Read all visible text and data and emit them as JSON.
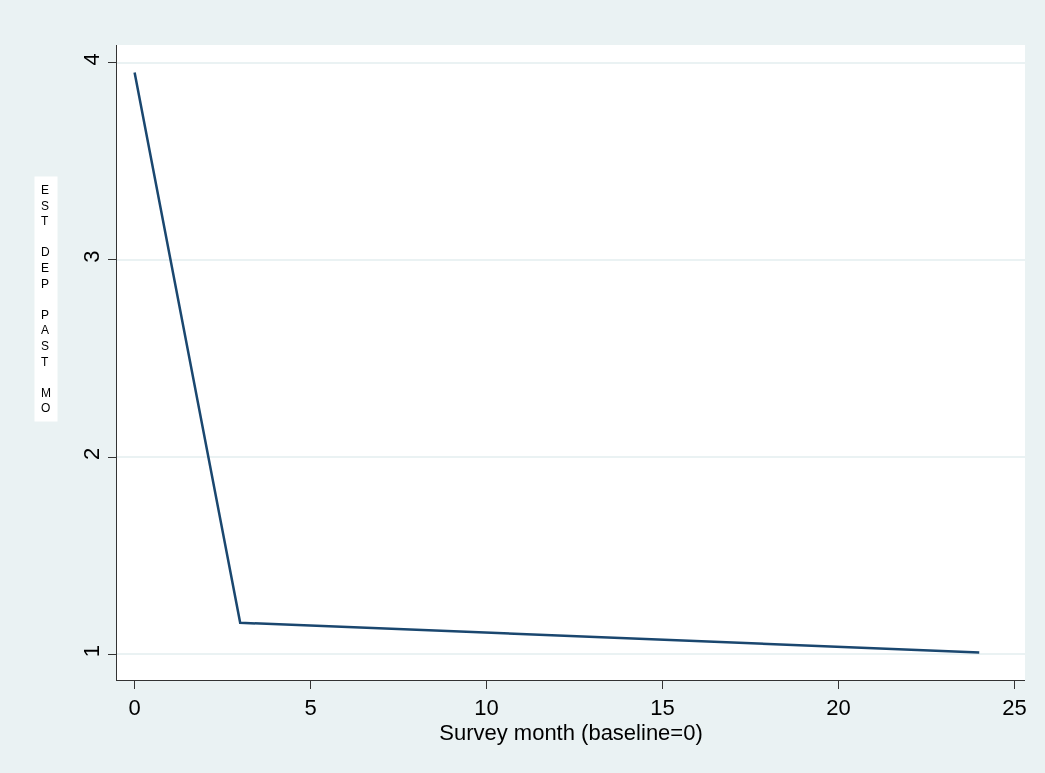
{
  "chart_data": {
    "type": "line",
    "xlabel": "Survey month (baseline=0)",
    "ylabel": "EST DEP PAST MO",
    "x": [
      0,
      3,
      24
    ],
    "series": [
      {
        "color": "#1a476f",
        "values": [
          3.95,
          1.16,
          1.01
        ]
      }
    ],
    "xlim": [
      -0.5,
      25.3
    ],
    "ylim": [
      0.87,
      4.09
    ],
    "xticks": [
      0,
      5,
      10,
      15,
      20,
      25
    ],
    "yticks": [
      1,
      2,
      3,
      4
    ],
    "grid": "y",
    "legend": false,
    "marker": "none",
    "line_style": "solid"
  }
}
